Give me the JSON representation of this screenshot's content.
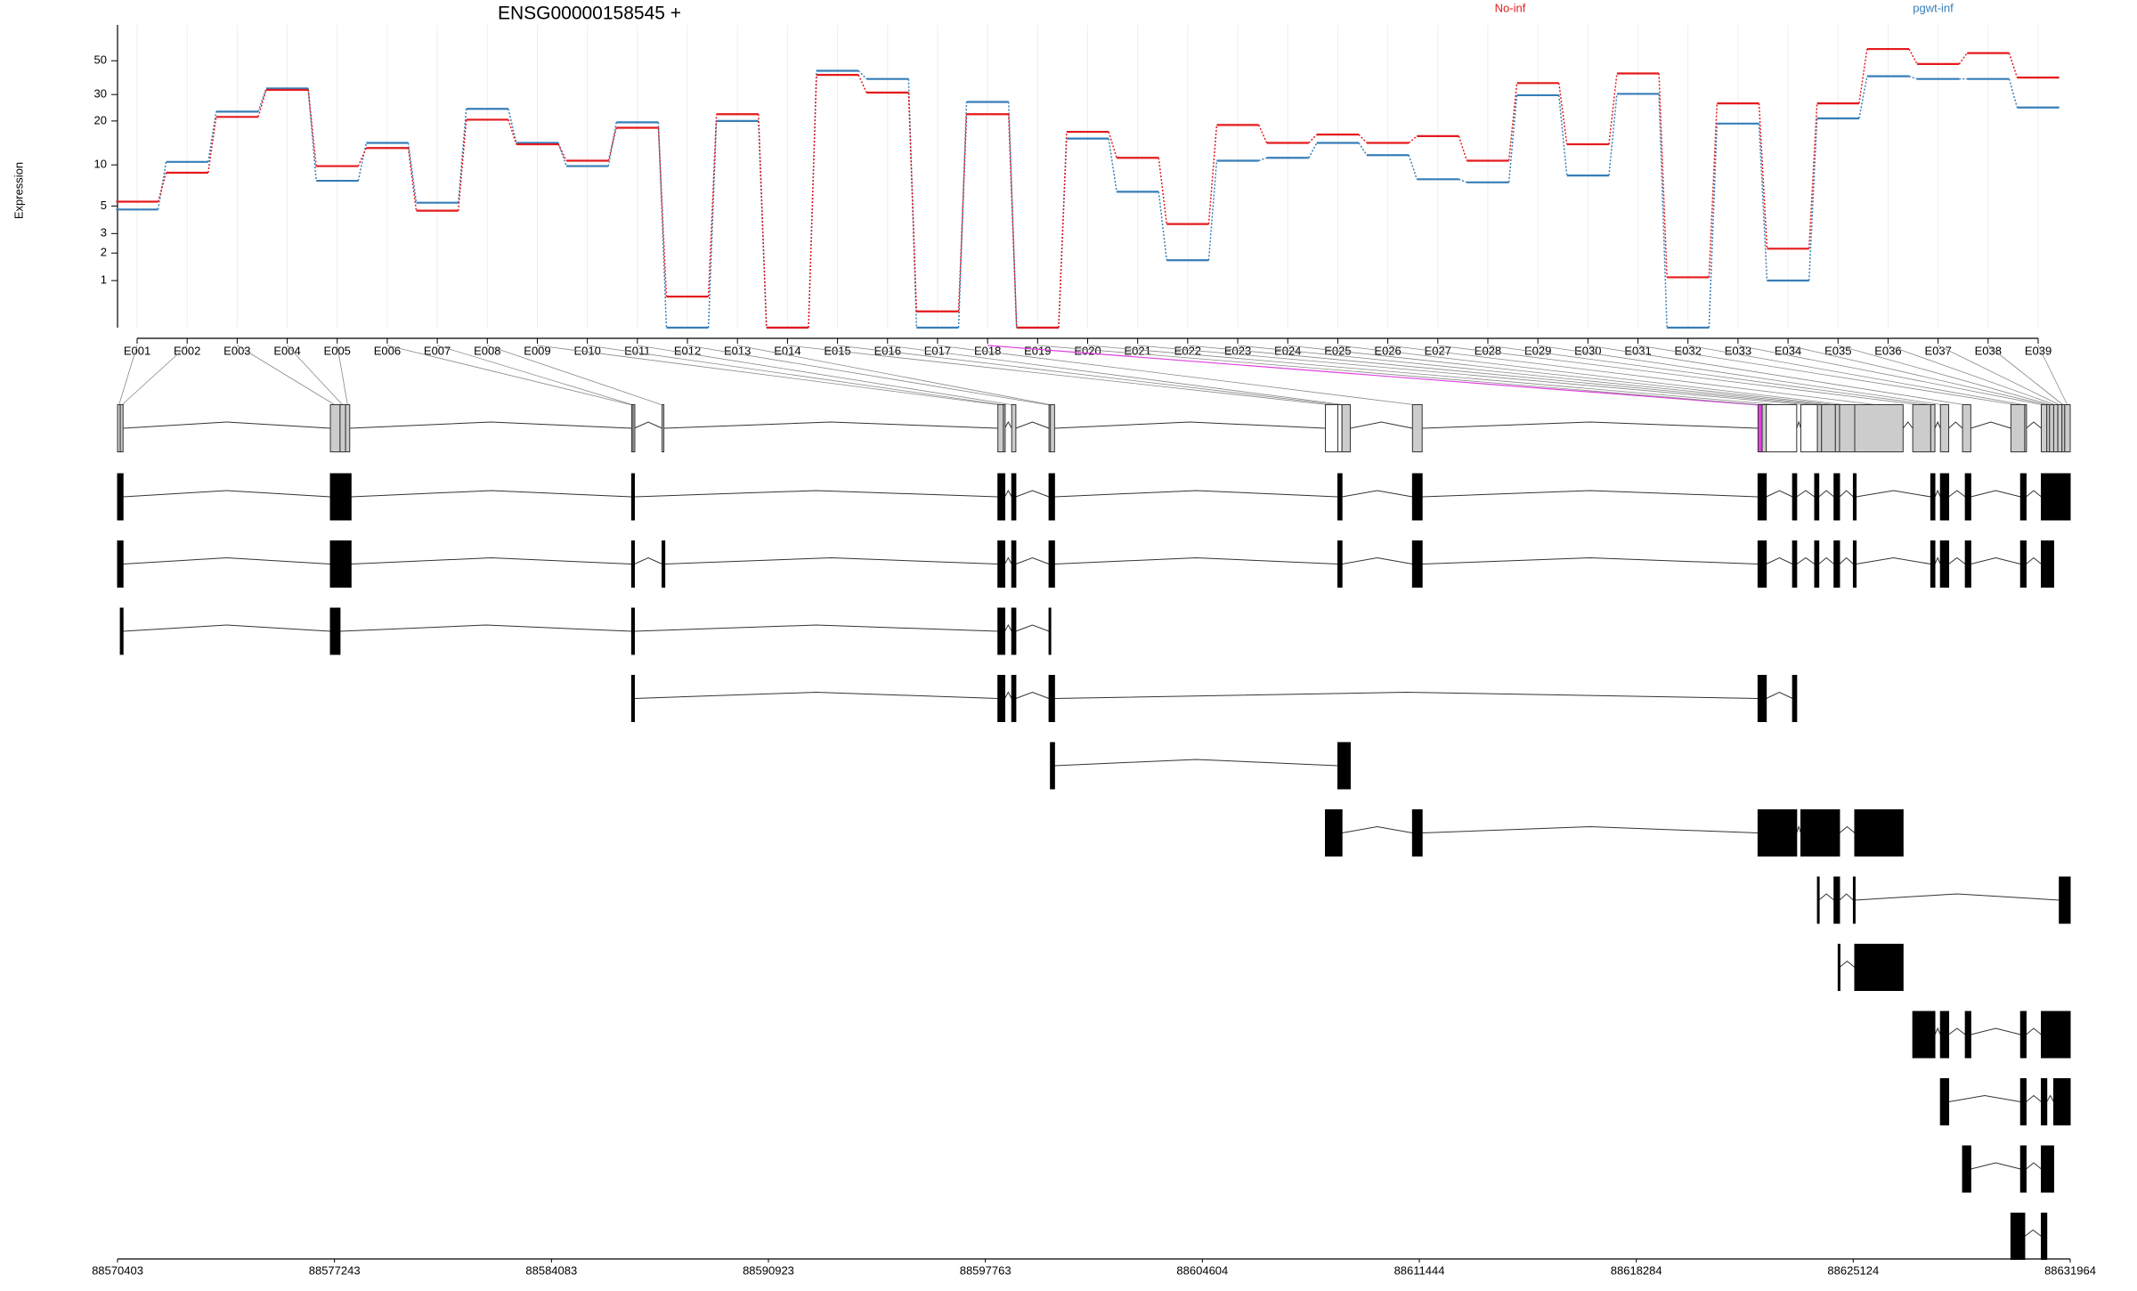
{
  "chart_data": [
    {
      "type": "step",
      "title": "ENSG00000158545 +",
      "ylabel": "Expression",
      "categories": [
        "E001",
        "E002",
        "E003",
        "E004",
        "E005",
        "E006",
        "E007",
        "E008",
        "E009",
        "E010",
        "E011",
        "E012",
        "E013",
        "E014",
        "E015",
        "E016",
        "E017",
        "E018",
        "E019",
        "E020",
        "E021",
        "E022",
        "E023",
        "E024",
        "E025",
        "E026",
        "E027",
        "E028",
        "E029",
        "E030",
        "E031",
        "E032",
        "E033",
        "E034",
        "E035",
        "E036",
        "E037",
        "E038",
        "E039"
      ],
      "series": [
        {
          "name": "No-inf",
          "color": "#e41a1c",
          "values": [
            5.4,
            8.8,
            21.3,
            32.2,
            9.8,
            13.1,
            4.6,
            20.4,
            13.9,
            10.7,
            18,
            0.58,
            22.2,
            0,
            40.4,
            30.9,
            0.27,
            22.2,
            0,
            16.9,
            11.2,
            3.6,
            18.8,
            14.2,
            16.2,
            14.2,
            15.8,
            10.7,
            35.7,
            13.9,
            41.3,
            1.1,
            26.2,
            2.2,
            26.2,
            59.6,
            47.6,
            56.1,
            38.8
          ]
        },
        {
          "name": "pgwt-inf",
          "color": "#377eb8",
          "values": [
            4.7,
            10.5,
            23.1,
            32.9,
            7.7,
            14.2,
            5.3,
            24.1,
            14.2,
            9.8,
            19.6,
            0,
            20,
            0,
            43,
            38,
            0,
            26.8,
            0,
            15.2,
            6.4,
            1.7,
            10.7,
            11.2,
            14.2,
            11.7,
            7.9,
            7.5,
            29.7,
            8.4,
            30.3,
            0,
            19.2,
            1,
            20.8,
            39.6,
            38,
            38,
            24.6
          ]
        }
      ],
      "yscale": "log1p",
      "ylim": [
        0,
        70
      ],
      "yticks": [
        1,
        2,
        3,
        5,
        10,
        20,
        30,
        50
      ],
      "grid": true,
      "legend_position": "top"
    },
    {
      "type": "gene_model",
      "xlim": [
        88570403,
        88631964
      ],
      "xticks": [
        88570403,
        88577243,
        88584083,
        88590923,
        88597763,
        88604604,
        88611444,
        88618284,
        88625124,
        88631964
      ],
      "exonic_parts": [
        [
          88570403,
          88570490
        ],
        [
          88570490,
          88570577
        ],
        [
          88577113,
          88577418
        ],
        [
          88577418,
          88577592
        ],
        [
          88577592,
          88577723
        ],
        [
          88586611,
          88586655
        ],
        [
          88586655,
          88586698
        ],
        [
          88587570,
          88587614
        ],
        [
          88598157,
          88598331
        ],
        [
          88598331,
          88598375
        ],
        [
          88598593,
          88598724
        ],
        [
          88599769,
          88599813
        ],
        [
          88599813,
          88599944
        ],
        [
          88608483,
          88608875
        ],
        [
          88608875,
          88609006
        ],
        [
          88609006,
          88609267
        ],
        [
          88611228,
          88611533
        ],
        [
          88622121,
          88622252
        ],
        [
          88622252,
          88622382
        ],
        [
          88622382,
          88623341
        ],
        [
          88623472,
          88623994
        ],
        [
          88623994,
          88624125
        ],
        [
          88624125,
          88624561
        ],
        [
          88624561,
          88624692
        ],
        [
          88624692,
          88625170
        ],
        [
          88625170,
          88626695
        ],
        [
          88627000,
          88627567
        ],
        [
          88627567,
          88627698
        ],
        [
          88627872,
          88628133
        ],
        [
          88628569,
          88628830
        ],
        [
          88630094,
          88630530
        ],
        [
          88630530,
          88630573
        ],
        [
          88631052,
          88631226
        ],
        [
          88631226,
          88631313
        ],
        [
          88631313,
          88631443
        ],
        [
          88631443,
          88631574
        ],
        [
          88631574,
          88631704
        ],
        [
          88631704,
          88631791
        ],
        [
          88631791,
          88631964
        ]
      ],
      "exonic_part_colors": [
        "#cccccc",
        "#cccccc",
        "#cccccc",
        "#cccccc",
        "#cccccc",
        "#cccccc",
        "#cccccc",
        "#cccccc",
        "#cccccc",
        "#cccccc",
        "#cccccc",
        "#cccccc",
        "#cccccc",
        "#ffffff",
        "#ffffff",
        "#cccccc",
        "#cccccc",
        "#e040e0",
        "#cccccc",
        "#ffffff",
        "#ffffff",
        "#cccccc",
        "#cccccc",
        "#cccccc",
        "#cccccc",
        "#cccccc",
        "#cccccc",
        "#cccccc",
        "#cccccc",
        "#cccccc",
        "#cccccc",
        "#cccccc",
        "#cccccc",
        "#cccccc",
        "#cccccc",
        "#cccccc",
        "#cccccc",
        "#cccccc",
        "#cccccc"
      ],
      "transcripts": [
        [
          [
            88570403,
            88570577
          ],
          [
            88577113,
            88577766
          ],
          [
            88586611,
            88586698
          ],
          [
            88598157,
            88598375
          ],
          [
            88598593,
            88598724
          ],
          [
            88599769,
            88599944
          ],
          [
            88608875,
            88609006
          ],
          [
            88611228,
            88611533
          ],
          [
            88622121,
            88622382
          ],
          [
            88623210,
            88623341
          ],
          [
            88623907,
            88624038
          ],
          [
            88624517,
            88624692
          ],
          [
            88625127,
            88625214
          ],
          [
            88627567,
            88627698
          ],
          [
            88627872,
            88628133
          ],
          [
            88628656,
            88628830
          ],
          [
            88630399,
            88630573
          ],
          [
            88631052,
            88631964
          ]
        ],
        [
          [
            88570403,
            88570577
          ],
          [
            88577113,
            88577766
          ],
          [
            88586611,
            88586698
          ],
          [
            88587570,
            88587657
          ],
          [
            88598157,
            88598375
          ],
          [
            88598593,
            88598724
          ],
          [
            88599769,
            88599944
          ],
          [
            88608875,
            88609006
          ],
          [
            88611228,
            88611533
          ],
          [
            88622121,
            88622382
          ],
          [
            88623210,
            88623341
          ],
          [
            88623907,
            88624038
          ],
          [
            88624517,
            88624692
          ],
          [
            88625127,
            88625214
          ],
          [
            88627567,
            88627698
          ],
          [
            88627872,
            88628133
          ],
          [
            88628656,
            88628830
          ],
          [
            88630399,
            88630573
          ],
          [
            88631052,
            88631443
          ]
        ],
        [
          [
            88570490,
            88570577
          ],
          [
            88577113,
            88577418
          ],
          [
            88586611,
            88586698
          ],
          [
            88598157,
            88598375
          ],
          [
            88598593,
            88598724
          ],
          [
            88599769,
            88599813
          ]
        ],
        [
          [
            88586611,
            88586698
          ],
          [
            88598157,
            88598375
          ],
          [
            88598593,
            88598724
          ],
          [
            88599769,
            88599944
          ],
          [
            88622121,
            88622382
          ],
          [
            88623210,
            88623341
          ]
        ],
        [
          [
            88599813,
            88599944
          ],
          [
            88608875,
            88609267
          ]
        ],
        [
          [
            88608483,
            88609006
          ],
          [
            88611228,
            88611533
          ],
          [
            88622121,
            88623341
          ],
          [
            88623472,
            88624692
          ],
          [
            88625170,
            88626695
          ]
        ],
        [
          [
            88623994,
            88624038
          ],
          [
            88624517,
            88624692
          ],
          [
            88625127,
            88625170
          ],
          [
            88631619,
            88631964
          ]
        ],
        [
          [
            88624648,
            88624692
          ],
          [
            88625170,
            88626695
          ]
        ],
        [
          [
            88627000,
            88627698
          ],
          [
            88627872,
            88628133
          ],
          [
            88628656,
            88628830
          ],
          [
            88630399,
            88630573
          ],
          [
            88631052,
            88631964
          ]
        ],
        [
          [
            88627872,
            88628133
          ],
          [
            88630399,
            88630573
          ],
          [
            88631052,
            88631226
          ],
          [
            88631443,
            88631964
          ]
        ],
        [
          [
            88628569,
            88628830
          ],
          [
            88630399,
            88630573
          ],
          [
            88631052,
            88631443
          ]
        ],
        [
          [
            88630094,
            88630530
          ],
          [
            88631052,
            88631226
          ]
        ]
      ]
    }
  ]
}
